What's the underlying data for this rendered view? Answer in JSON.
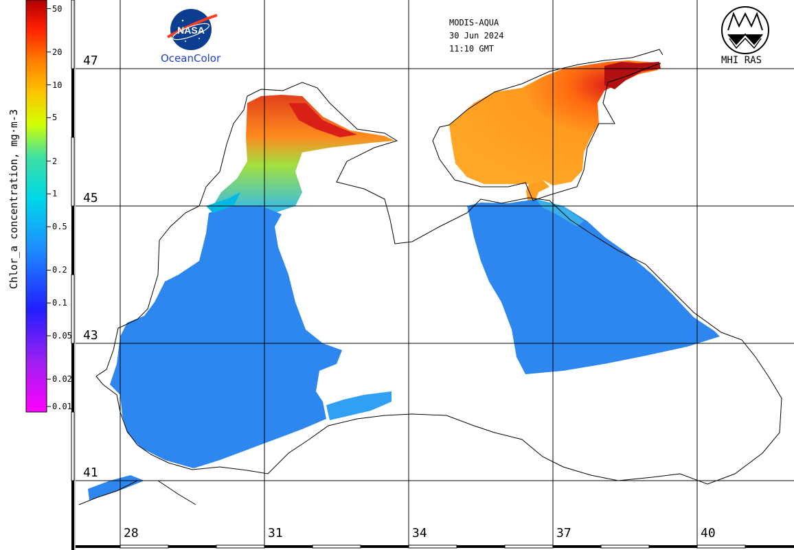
{
  "header": {
    "sensor": "MODIS-AQUA",
    "date": "30 Jun 2024",
    "time": "11:10 GMT"
  },
  "logos": {
    "left_logo_text": "NASA",
    "left_caption": "OceanColor",
    "right_caption": "MHI RAS"
  },
  "colorbar": {
    "title": "Chlor_a concentration, mg·m-3",
    "scale": "log",
    "range": [
      0.01,
      60
    ],
    "ticks": [
      "50",
      "20",
      "10",
      "5",
      "2",
      "1",
      "0.5",
      "0.2",
      "0.1",
      "0.05",
      "0.02",
      "0.01"
    ],
    "tick_values": [
      50,
      20,
      10,
      5,
      2,
      1,
      0.5,
      0.2,
      0.1,
      0.05,
      0.02,
      0.01
    ],
    "colors": [
      "#ff00ff",
      "#8a2be2",
      "#2020ff",
      "#1e90ff",
      "#00d8e8",
      "#40e0a0",
      "#d4ff00",
      "#ffa500",
      "#ff4000",
      "#c00000"
    ]
  },
  "map": {
    "latitudes": [
      "47",
      "45",
      "43",
      "41"
    ],
    "longitudes": [
      "28",
      "31",
      "34",
      "37",
      "40"
    ],
    "colors": {
      "water_low": "#2e86ef",
      "water_mid": "#1f6fe6",
      "coastal": "#00c8e0",
      "green": "#90e040",
      "orange": "#ff9a1f",
      "red": "#e0201a",
      "land": "#ffffff",
      "coast": "#000000"
    }
  }
}
